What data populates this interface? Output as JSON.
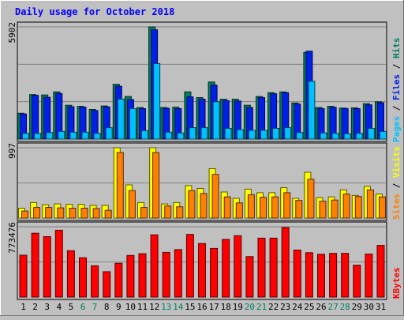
{
  "chart_data": [
    {
      "type": "bar",
      "title": "Daily usage for October 2018",
      "categories": [
        "1",
        "2",
        "3",
        "4",
        "5",
        "6",
        "7",
        "8",
        "9",
        "10",
        "11",
        "12",
        "13",
        "14",
        "15",
        "16",
        "17",
        "18",
        "19",
        "20",
        "21",
        "22",
        "23",
        "24",
        "25",
        "26",
        "27",
        "28",
        "29",
        "30",
        "31"
      ],
      "weekend_days": [
        "6",
        "7",
        "13",
        "14",
        "20",
        "21",
        "27",
        "28"
      ],
      "ymax_label": "5902",
      "ylim": [
        0,
        5902
      ],
      "legend": [
        "Pages",
        "Files",
        "Hits"
      ],
      "series": [
        {
          "name": "Hits",
          "color": "#00805c",
          "values": [
            1360,
            2340,
            2320,
            2480,
            1780,
            1720,
            1560,
            1740,
            2880,
            2240,
            1660,
            5902,
            1660,
            1680,
            2480,
            2180,
            3000,
            2100,
            2100,
            1780,
            2240,
            2440,
            2480,
            1900,
            4560,
            1660,
            1720,
            1630,
            1640,
            1860,
            1960
          ]
        },
        {
          "name": "Files",
          "color": "#0020e8",
          "values": [
            1320,
            2300,
            2200,
            2400,
            1700,
            1680,
            1500,
            1690,
            2780,
            2080,
            1600,
            5750,
            1620,
            1600,
            2220,
            2100,
            2840,
            2020,
            2000,
            1660,
            2180,
            2380,
            2440,
            1840,
            4620,
            1600,
            1670,
            1610,
            1600,
            1800,
            1910
          ]
        },
        {
          "name": "Pages",
          "color": "#00c0ff",
          "values": [
            300,
            300,
            340,
            400,
            360,
            360,
            300,
            600,
            2100,
            1600,
            440,
            3970,
            360,
            320,
            600,
            600,
            1960,
            560,
            500,
            460,
            460,
            560,
            600,
            340,
            3040,
            320,
            300,
            280,
            300,
            560,
            400
          ]
        }
      ]
    },
    {
      "type": "bar",
      "ymax_label": "997",
      "ylim": [
        0,
        997
      ],
      "legend": [
        "Sites",
        "Visits"
      ],
      "series": [
        {
          "name": "Visits",
          "color": "#ffff00",
          "values": [
            140,
            220,
            190,
            200,
            195,
            195,
            180,
            180,
            997,
            470,
            220,
            997,
            200,
            220,
            460,
            420,
            700,
            370,
            280,
            410,
            360,
            360,
            430,
            280,
            650,
            290,
            300,
            400,
            320,
            450,
            340
          ]
        },
        {
          "name": "Sites",
          "color": "#ff8000",
          "values": [
            100,
            150,
            150,
            145,
            140,
            140,
            135,
            110,
            930,
            390,
            150,
            930,
            170,
            160,
            390,
            350,
            620,
            300,
            215,
            330,
            295,
            300,
            360,
            250,
            550,
            240,
            255,
            340,
            305,
            400,
            300
          ]
        }
      ]
    },
    {
      "type": "bar",
      "ymax_label": "773476",
      "ylim": [
        0,
        773476
      ],
      "legend": [
        "KBytes"
      ],
      "series": [
        {
          "name": "KBytes",
          "color": "#ff0000",
          "values": [
            461000,
            702000,
            665000,
            735000,
            510000,
            433000,
            344000,
            279000,
            372000,
            458000,
            477000,
            685000,
            492000,
            522000,
            689000,
            589000,
            535000,
            634000,
            675000,
            445000,
            648000,
            648000,
            766000,
            517000,
            488000,
            471000,
            481000,
            481000,
            351000,
            474000,
            568000
          ]
        }
      ]
    }
  ]
}
